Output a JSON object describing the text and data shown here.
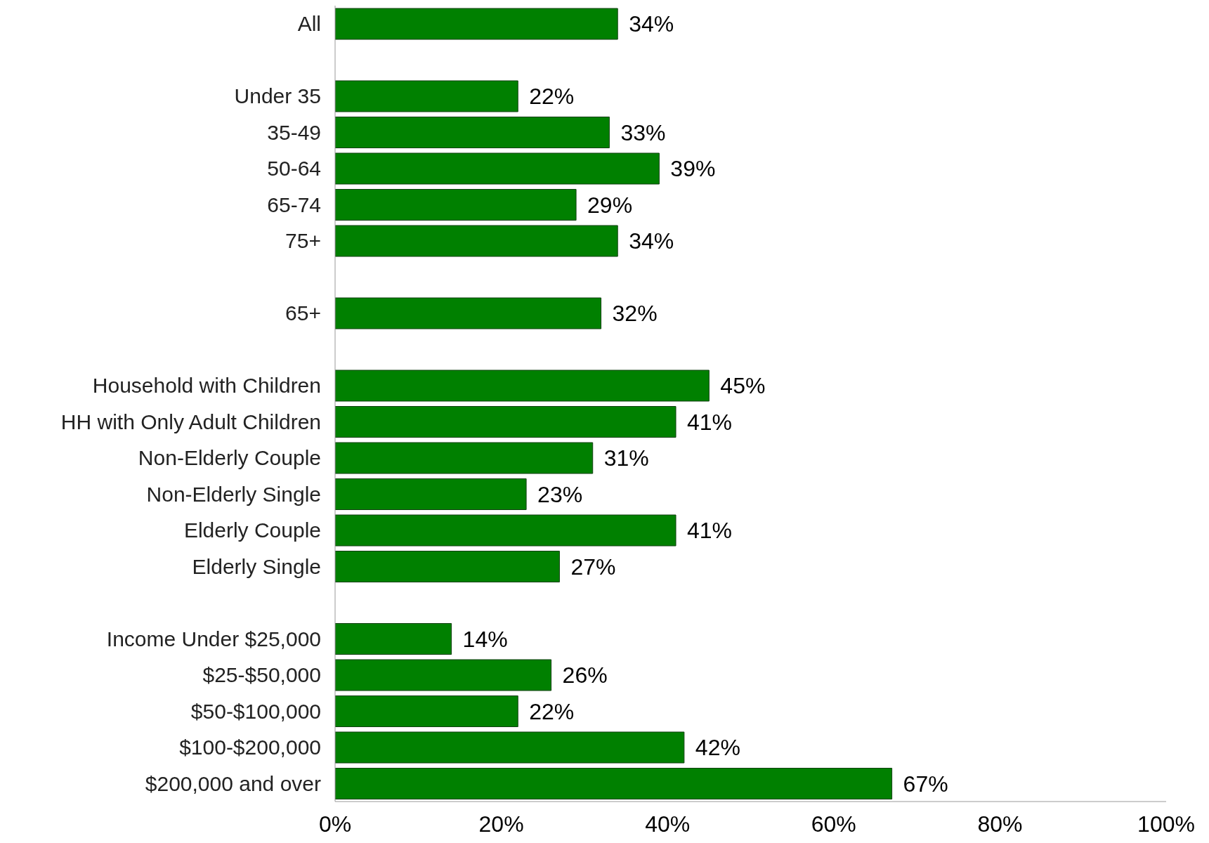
{
  "chart_data": {
    "type": "bar",
    "orientation": "horizontal",
    "categories": [
      "All",
      null,
      "Under 35",
      "35-49",
      "50-64",
      "65-74",
      "75+",
      null,
      "65+",
      null,
      "Household with Children",
      "HH with Only Adult Children",
      "Non-Elderly Couple",
      "Non-Elderly Single",
      "Elderly Couple",
      "Elderly Single",
      null,
      "Income Under $25,000",
      "$25-$50,000",
      "$50-$100,000",
      "$100-$200,000",
      "$200,000 and over"
    ],
    "values": [
      34,
      null,
      22,
      33,
      39,
      29,
      34,
      null,
      32,
      null,
      45,
      41,
      31,
      23,
      41,
      27,
      null,
      14,
      26,
      22,
      42,
      67
    ],
    "value_labels": [
      "34%",
      null,
      "22%",
      "33%",
      "39%",
      "29%",
      "34%",
      null,
      "32%",
      null,
      "45%",
      "41%",
      "31%",
      "23%",
      "41%",
      "27%",
      null,
      "14%",
      "26%",
      "22%",
      "42%",
      "67%"
    ],
    "color": "#008000",
    "xlim": [
      0,
      100
    ],
    "xticks": [
      {
        "value": 0,
        "label": "0%"
      },
      {
        "value": 20,
        "label": "20%"
      },
      {
        "value": 40,
        "label": "40%"
      },
      {
        "value": 60,
        "label": "60%"
      },
      {
        "value": 80,
        "label": "80%"
      },
      {
        "value": 100,
        "label": "100%"
      }
    ],
    "grid": false
  }
}
